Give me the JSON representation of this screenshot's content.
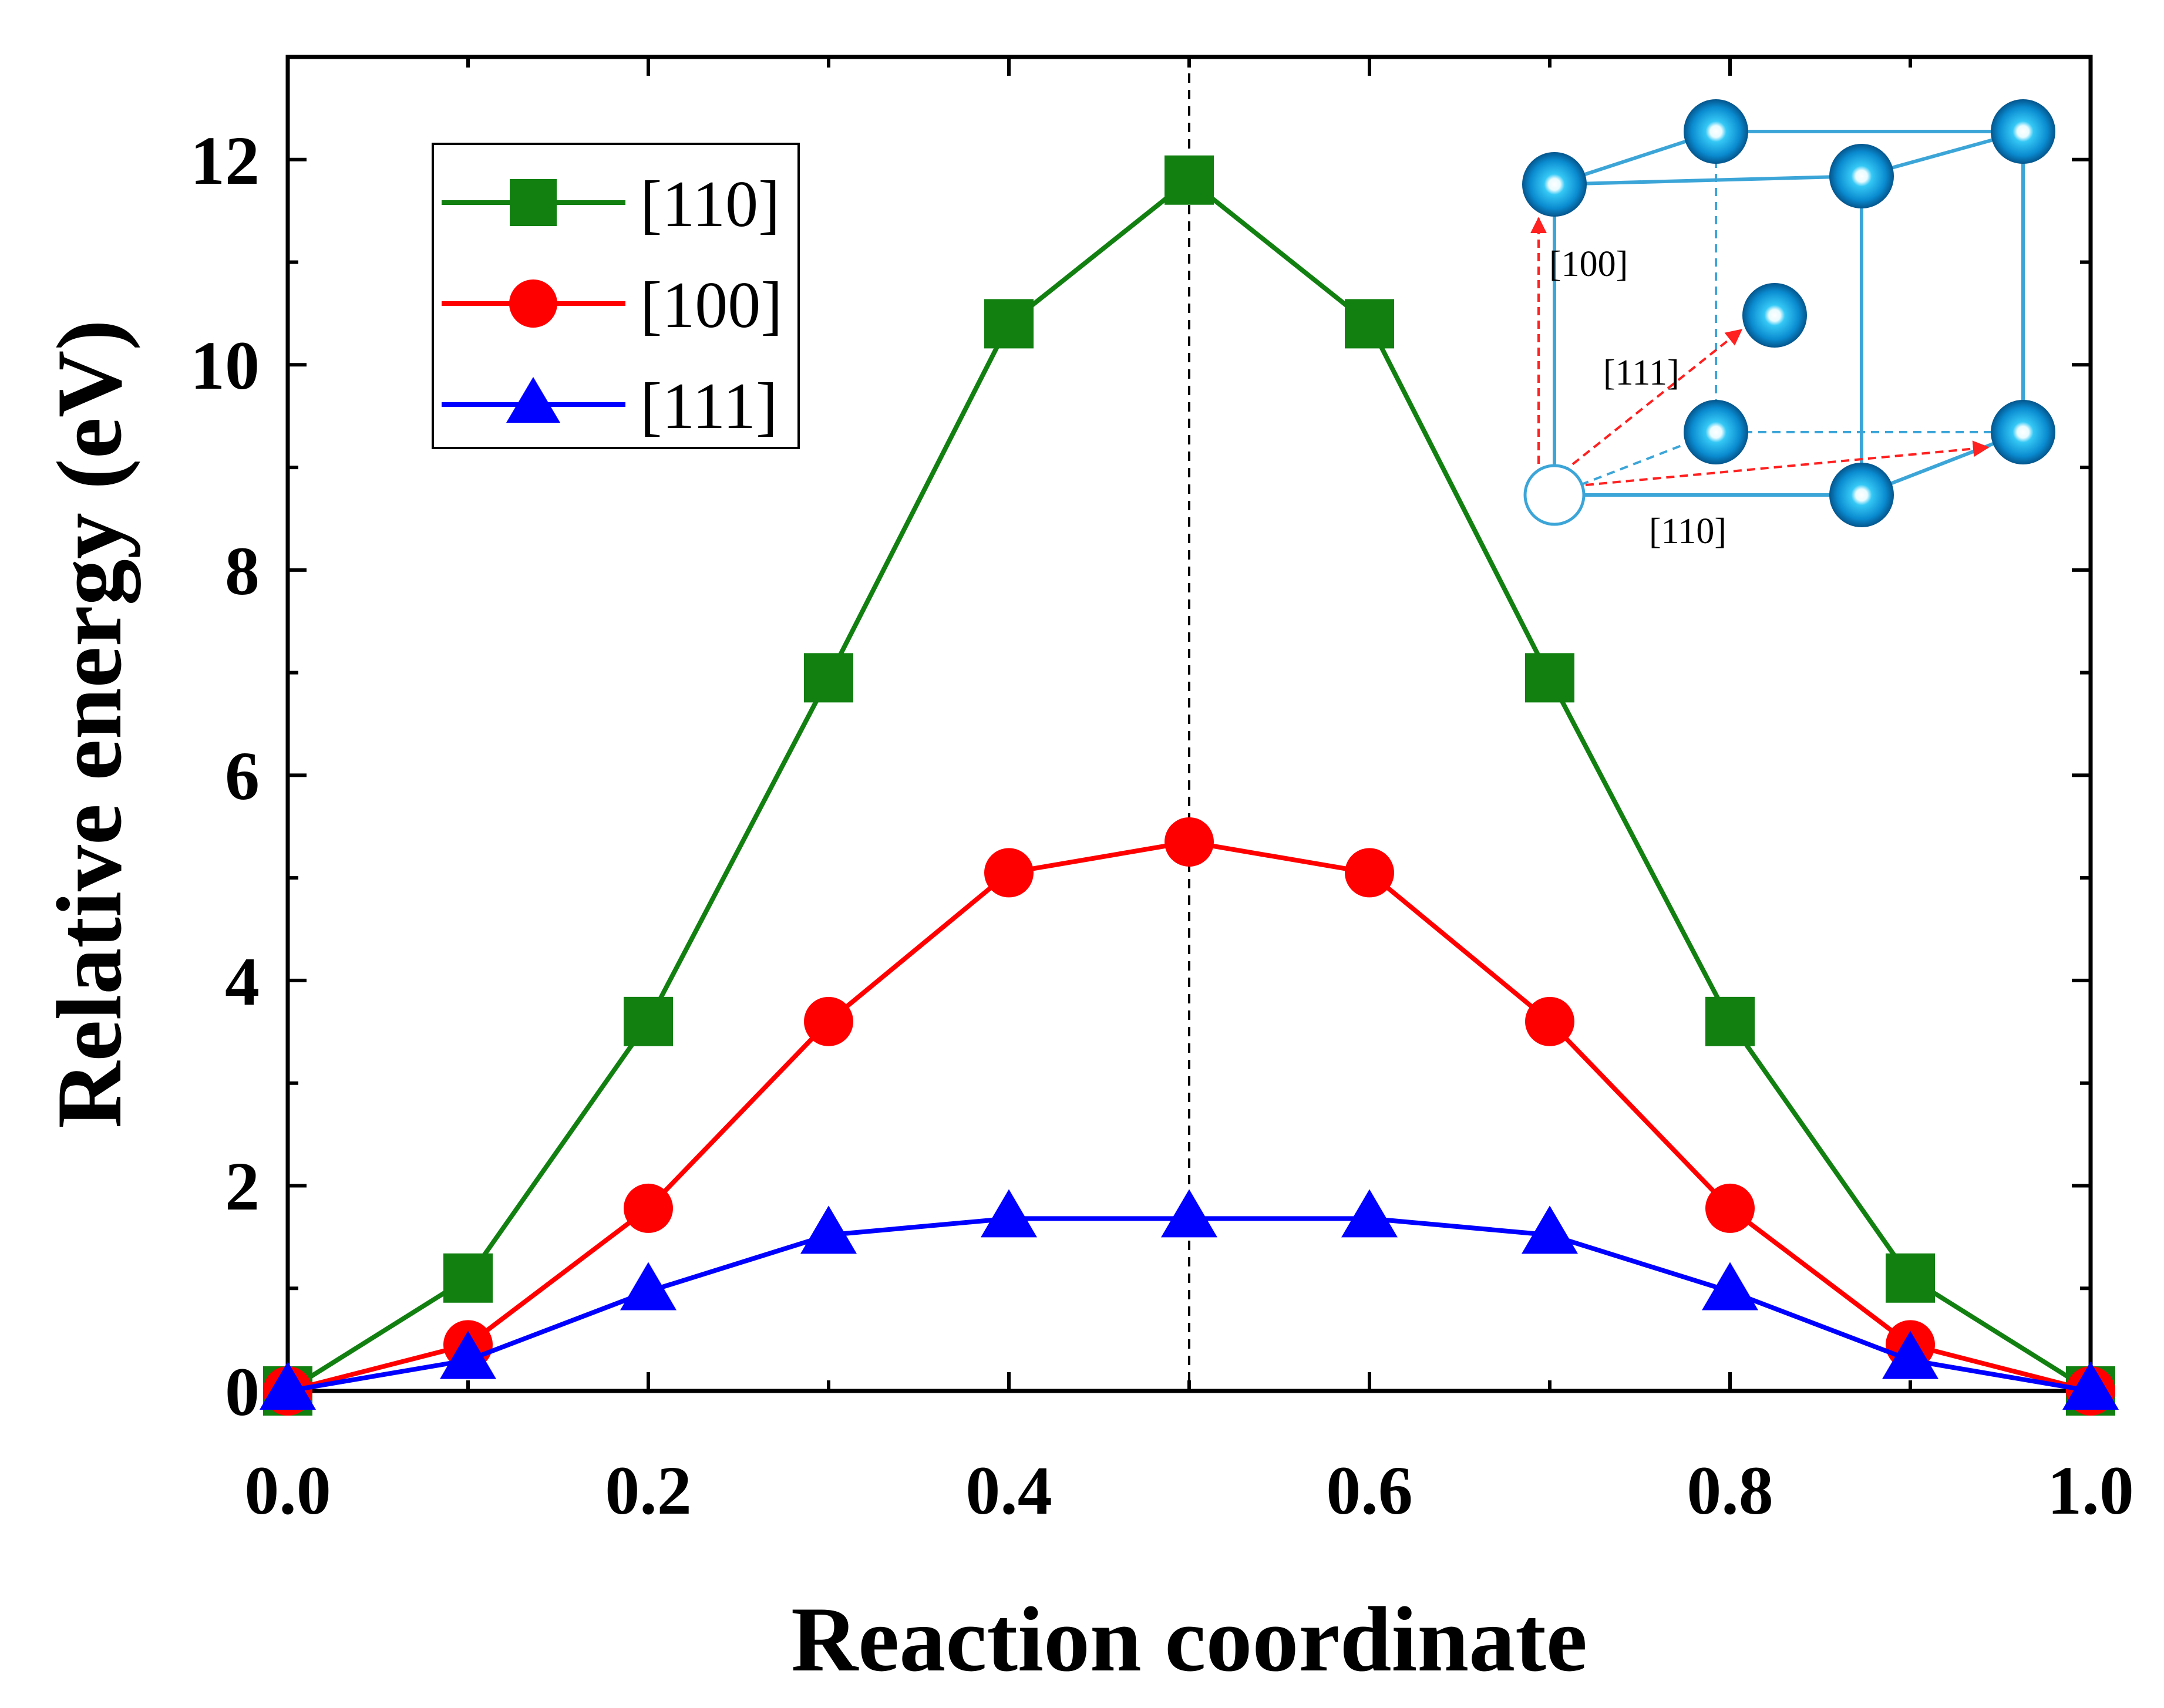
{
  "chart_data": {
    "type": "line",
    "title": "",
    "xlabel": "Reaction coordinate",
    "ylabel": "Relative energy (eV)",
    "xlim": [
      0.0,
      1.0
    ],
    "ylim": [
      0,
      13
    ],
    "x_ticks": [
      0.0,
      0.2,
      0.4,
      0.6,
      0.8,
      1.0
    ],
    "x_tick_labels": [
      "0.0",
      "0.2",
      "0.4",
      "0.6",
      "0.8",
      "1.0"
    ],
    "y_ticks": [
      0,
      2,
      4,
      6,
      8,
      10,
      12
    ],
    "y_tick_labels": [
      "0",
      "2",
      "4",
      "6",
      "8",
      "10",
      "12"
    ],
    "grid": false,
    "legend_position": "top-left",
    "reference_line": {
      "axis": "x",
      "value": 0.5,
      "style": "dashed"
    },
    "x": [
      0.0,
      0.1,
      0.2,
      0.3,
      0.4,
      0.5,
      0.6,
      0.7,
      0.8,
      0.9,
      1.0
    ],
    "series": [
      {
        "name": "[110]",
        "marker": "square",
        "color": "#118011",
        "values": [
          0.0,
          1.1,
          3.6,
          6.95,
          10.4,
          11.8,
          10.4,
          6.95,
          3.6,
          1.1,
          0.0
        ]
      },
      {
        "name": "[100]",
        "marker": "circle",
        "color": "#ff0000",
        "values": [
          0.0,
          0.45,
          1.78,
          3.6,
          5.05,
          5.35,
          5.05,
          3.6,
          1.78,
          0.45,
          0.0
        ]
      },
      {
        "name": "[111]",
        "marker": "triangle",
        "color": "#0000ff",
        "values": [
          0.0,
          0.3,
          0.97,
          1.52,
          1.68,
          1.68,
          1.68,
          1.52,
          0.97,
          0.3,
          0.0
        ]
      }
    ],
    "inset": {
      "description_labels": [
        "[100]",
        "[111]",
        "[110]"
      ],
      "atom_color": "#1f9fe6",
      "frame_color": "#3ca5d8",
      "arrow_color": "#ff2020"
    }
  }
}
